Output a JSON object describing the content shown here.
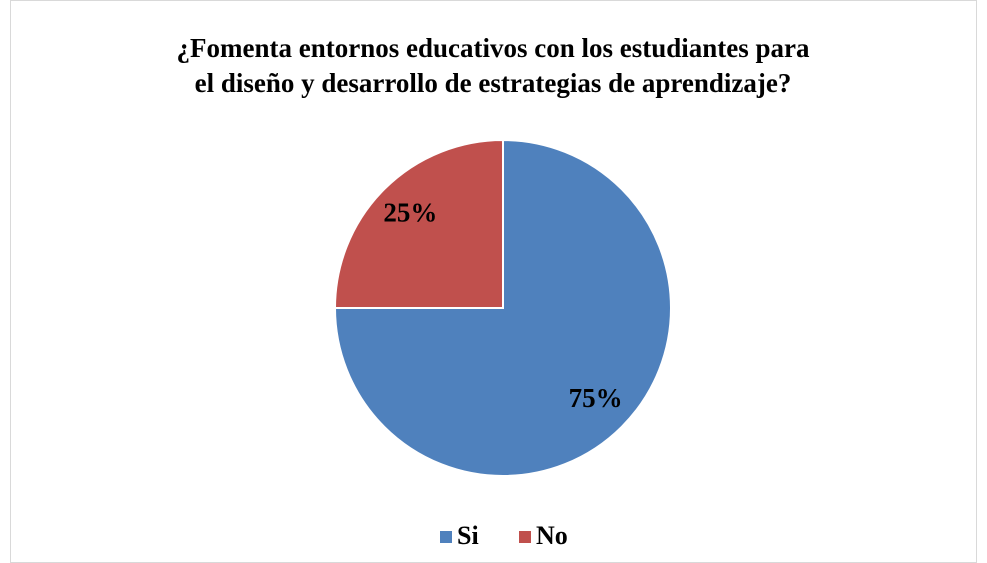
{
  "chart_data": {
    "type": "pie",
    "title": [
      "¿Fomenta entornos educativos con los estudiantes para",
      "el diseño y desarrollo de estrategias de aprendizaje?"
    ],
    "categories": [
      "Si",
      "No"
    ],
    "values": [
      75,
      25
    ],
    "value_labels": [
      "75%",
      "25%"
    ],
    "colors": [
      "#4f81bd",
      "#c0504d"
    ],
    "legend": "bottom"
  }
}
